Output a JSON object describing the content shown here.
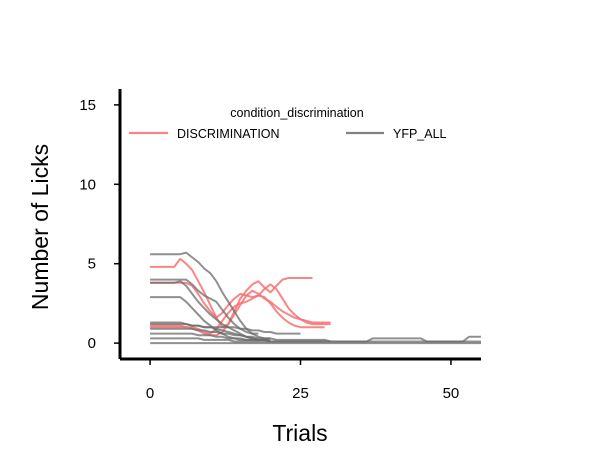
{
  "chart_data": {
    "type": "line",
    "xlabel": "Trials",
    "ylabel": "Number of Licks",
    "xlim": [
      -5,
      55
    ],
    "ylim": [
      -1,
      16
    ],
    "xticks": [
      0,
      25,
      50
    ],
    "yticks": [
      0,
      5,
      10,
      15
    ],
    "grid": false,
    "legend": {
      "title": "condition_discrimination",
      "placement": "top",
      "entries": [
        {
          "label": "DISCRIMINATION",
          "color": "#f87171"
        },
        {
          "label": "YFP_ALL",
          "color": "#6b6b6b"
        }
      ]
    },
    "series": [
      {
        "group": "DISCRIMINATION",
        "x": [
          0,
          1,
          2,
          3,
          4,
          5,
          6,
          7,
          8,
          9,
          10,
          11,
          12,
          13,
          14,
          15,
          16,
          17,
          18,
          19,
          20,
          21,
          22,
          23,
          24,
          25,
          26,
          27
        ],
        "y": [
          4.8,
          4.8,
          4.8,
          4.8,
          4.8,
          5.3,
          5.0,
          4.6,
          3.9,
          3.2,
          2.4,
          1.6,
          1.0,
          1.2,
          2.0,
          2.8,
          3.3,
          3.7,
          3.9,
          3.5,
          3.2,
          3.6,
          4.0,
          4.1,
          4.1,
          4.1,
          4.1,
          4.1
        ]
      },
      {
        "group": "DISCRIMINATION",
        "x": [
          0,
          1,
          2,
          3,
          4,
          5,
          6,
          7,
          8,
          9,
          10,
          11,
          12,
          13,
          14,
          15,
          16,
          17,
          18,
          19,
          20,
          21,
          22,
          23,
          24,
          25,
          26,
          27,
          28,
          29,
          30
        ],
        "y": [
          3.8,
          3.8,
          3.8,
          3.8,
          3.8,
          3.8,
          3.8,
          3.6,
          3.1,
          2.5,
          2.0,
          1.6,
          1.9,
          2.4,
          2.8,
          3.1,
          3.0,
          2.9,
          3.0,
          3.4,
          3.7,
          3.4,
          2.8,
          2.2,
          1.8,
          1.5,
          1.3,
          1.2,
          1.2,
          1.2,
          1.2
        ]
      },
      {
        "group": "DISCRIMINATION",
        "x": [
          0,
          1,
          2,
          3,
          4,
          5,
          6,
          7,
          8,
          9,
          10,
          11,
          12,
          13,
          14,
          15,
          16,
          17,
          18,
          19,
          20,
          21,
          22,
          23,
          24,
          25,
          26,
          27,
          28,
          29,
          30
        ],
        "y": [
          1.1,
          1.1,
          1.1,
          1.1,
          1.1,
          1.1,
          1.0,
          0.9,
          0.8,
          0.6,
          0.5,
          0.5,
          0.7,
          1.2,
          1.8,
          2.4,
          3.0,
          3.3,
          3.1,
          2.8,
          2.6,
          2.3,
          2.0,
          1.8,
          1.6,
          1.5,
          1.4,
          1.3,
          1.3,
          1.3,
          1.3
        ]
      },
      {
        "group": "DISCRIMINATION",
        "x": [
          0,
          1,
          2,
          3,
          4,
          5,
          6,
          7,
          8,
          9,
          10,
          11,
          12,
          13,
          14,
          15,
          16,
          17,
          18,
          19,
          20,
          21,
          22,
          23,
          24,
          25,
          26,
          27,
          28,
          29
        ],
        "y": [
          1.0,
          1.0,
          1.0,
          1.0,
          1.0,
          1.0,
          1.0,
          1.0,
          0.9,
          0.7,
          0.6,
          0.9,
          1.4,
          1.9,
          2.3,
          2.5,
          2.6,
          2.8,
          3.0,
          2.9,
          2.5,
          2.0,
          1.6,
          1.3,
          1.1,
          1.0,
          1.0,
          1.0,
          1.0,
          1.0
        ]
      },
      {
        "group": "YFP_ALL",
        "x": [
          0,
          1,
          2,
          3,
          4,
          5,
          6,
          7,
          8,
          9,
          10,
          11,
          12,
          13,
          14,
          15,
          16,
          17,
          18,
          19,
          20
        ],
        "y": [
          5.6,
          5.6,
          5.6,
          5.6,
          5.6,
          5.6,
          5.7,
          5.4,
          5.1,
          4.7,
          4.4,
          3.9,
          3.2,
          2.6,
          2.0,
          1.4,
          0.9,
          0.6,
          0.4,
          0.3,
          0.3
        ]
      },
      {
        "group": "YFP_ALL",
        "x": [
          0,
          1,
          2,
          3,
          4,
          5,
          6,
          7,
          8,
          9,
          10,
          11,
          12,
          13,
          14,
          15,
          16,
          17,
          18
        ],
        "y": [
          4.0,
          4.0,
          4.0,
          4.0,
          4.0,
          4.0,
          4.0,
          3.7,
          3.3,
          3.0,
          2.8,
          2.6,
          2.1,
          1.6,
          1.2,
          0.9,
          0.7,
          0.6,
          0.6
        ]
      },
      {
        "group": "YFP_ALL",
        "x": [
          0,
          1,
          2,
          3,
          4,
          5,
          6,
          7,
          8,
          9,
          10,
          11,
          12,
          13,
          14,
          15,
          16,
          17,
          18,
          19,
          20
        ],
        "y": [
          3.8,
          3.8,
          3.8,
          3.8,
          3.8,
          3.9,
          3.6,
          3.1,
          2.6,
          2.2,
          1.8,
          1.5,
          1.2,
          1.0,
          0.8,
          0.6,
          0.4,
          0.3,
          0.2,
          0.2,
          0.2
        ]
      },
      {
        "group": "YFP_ALL",
        "x": [
          0,
          1,
          2,
          3,
          4,
          5,
          6,
          7,
          8,
          9,
          10,
          11,
          12,
          13,
          14,
          15,
          16,
          17,
          18
        ],
        "y": [
          2.9,
          2.9,
          2.9,
          2.9,
          2.9,
          2.9,
          2.6,
          2.2,
          1.8,
          1.4,
          1.1,
          0.8,
          0.6,
          0.4,
          0.3,
          0.2,
          0.2,
          0.2,
          0.2
        ]
      },
      {
        "group": "YFP_ALL",
        "x": [
          0,
          1,
          2,
          3,
          4,
          5,
          6,
          7,
          8,
          9,
          10,
          11,
          12,
          13,
          14,
          15,
          16,
          17,
          18,
          19,
          20,
          21,
          22,
          23,
          24,
          25,
          26,
          27,
          28,
          29,
          30,
          31,
          32,
          33,
          34,
          35,
          36,
          37,
          38,
          39,
          40,
          41,
          42,
          43,
          44,
          45,
          46,
          47,
          48,
          49,
          50,
          51,
          52,
          53,
          54,
          55
        ],
        "y": [
          1.3,
          1.3,
          1.3,
          1.3,
          1.3,
          1.3,
          1.2,
          1.1,
          1.1,
          1.0,
          1.0,
          0.9,
          0.8,
          0.7,
          0.6,
          0.5,
          0.4,
          0.3,
          0.2,
          0.2,
          0.1,
          0.1,
          0.1,
          0.1,
          0.1,
          0.1,
          0.1,
          0.1,
          0.1,
          0.1,
          0.1,
          0.1,
          0.1,
          0.1,
          0.1,
          0.1,
          0.1,
          0.1,
          0.1,
          0.1,
          0.1,
          0.1,
          0.1,
          0.1,
          0.1,
          0.1,
          0.1,
          0.1,
          0.1,
          0.1,
          0.1,
          0.1,
          0.1,
          0.1,
          0.1,
          0.1
        ]
      },
      {
        "group": "YFP_ALL",
        "x": [
          0,
          1,
          2,
          3,
          4,
          5,
          6,
          7,
          8,
          9,
          10,
          11,
          12,
          13,
          14,
          15,
          16,
          17,
          18,
          19,
          20,
          21,
          22,
          23,
          24,
          25
        ],
        "y": [
          1.2,
          1.2,
          1.2,
          1.2,
          1.2,
          1.2,
          1.2,
          1.1,
          1.1,
          1.0,
          1.0,
          1.0,
          1.0,
          1.0,
          1.0,
          0.9,
          0.9,
          0.8,
          0.8,
          0.7,
          0.7,
          0.6,
          0.6,
          0.6,
          0.6,
          0.6
        ]
      },
      {
        "group": "YFP_ALL",
        "x": [
          0,
          1,
          2,
          3,
          4,
          5,
          6,
          7,
          8,
          9,
          10,
          11,
          12,
          13,
          14,
          15,
          16,
          17,
          18,
          19,
          20,
          21,
          22,
          23,
          24,
          25,
          26,
          27,
          28,
          29,
          30,
          31,
          32,
          33,
          34,
          35,
          36,
          37,
          38,
          39,
          40,
          41,
          42,
          43,
          44,
          45,
          46,
          47,
          48,
          49,
          50,
          51,
          52,
          53,
          54,
          55
        ],
        "y": [
          0.9,
          0.9,
          0.9,
          0.9,
          0.9,
          0.9,
          0.9,
          0.9,
          0.8,
          0.8,
          0.7,
          0.7,
          0.6,
          0.6,
          0.5,
          0.5,
          0.4,
          0.4,
          0.3,
          0.3,
          0.3,
          0.2,
          0.2,
          0.2,
          0.2,
          0.2,
          0.2,
          0.2,
          0.2,
          0.2,
          0.1,
          0.1,
          0.1,
          0.1,
          0.1,
          0.1,
          0.1,
          0.3,
          0.3,
          0.3,
          0.3,
          0.3,
          0.3,
          0.3,
          0.3,
          0.3,
          0.1,
          0.1,
          0.1,
          0.1,
          0.1,
          0.1,
          0.1,
          0.4,
          0.4,
          0.4
        ]
      },
      {
        "group": "YFP_ALL",
        "x": [
          0,
          1,
          2,
          3,
          4,
          5,
          6,
          7,
          8,
          9,
          10,
          11,
          12,
          13,
          14,
          15,
          16,
          17,
          18,
          19,
          20,
          21,
          22,
          23,
          24,
          25,
          26,
          27,
          28,
          29,
          30
        ],
        "y": [
          0.6,
          0.6,
          0.6,
          0.6,
          0.6,
          0.6,
          0.6,
          0.6,
          0.5,
          0.5,
          0.5,
          0.4,
          0.4,
          0.3,
          0.3,
          0.3,
          0.2,
          0.2,
          0.2,
          0.2,
          0.1,
          0.1,
          0.1,
          0.1,
          0.1,
          0.1,
          0.1,
          0.1,
          0.1,
          0.1,
          0.1
        ]
      },
      {
        "group": "YFP_ALL",
        "x": [
          0,
          1,
          2,
          3,
          4,
          5,
          6,
          7,
          8,
          9,
          10,
          11,
          12,
          13,
          14,
          15,
          16,
          17,
          18,
          19,
          20
        ],
        "y": [
          0.3,
          0.3,
          0.3,
          0.3,
          0.3,
          0.3,
          0.3,
          0.3,
          0.3,
          0.2,
          0.2,
          0.2,
          0.2,
          0.2,
          0.1,
          0.1,
          0.1,
          0.1,
          0.1,
          0.1,
          0.1
        ]
      },
      {
        "group": "YFP_ALL",
        "x": [
          0,
          1,
          2,
          3,
          4,
          5,
          6,
          7,
          8,
          9,
          10,
          11,
          12,
          13,
          14,
          15,
          16,
          17,
          18,
          19,
          20,
          21,
          22,
          23,
          24,
          25,
          26,
          27,
          28,
          29,
          30,
          31,
          32,
          33,
          34,
          35,
          36,
          37,
          38,
          39,
          40,
          41,
          42,
          43,
          44,
          45,
          46,
          47,
          48,
          49,
          50,
          51,
          52,
          53,
          54,
          55
        ],
        "y": [
          0,
          0,
          0,
          0,
          0,
          0,
          0,
          0,
          0,
          0,
          0,
          0,
          0,
          0,
          0,
          0,
          0,
          0,
          0,
          0,
          0,
          0,
          0,
          0,
          0,
          0,
          0,
          0,
          0,
          0,
          0,
          0,
          0,
          0,
          0,
          0,
          0,
          0,
          0,
          0,
          0,
          0,
          0,
          0,
          0,
          0,
          0,
          0,
          0,
          0,
          0,
          0,
          0,
          0,
          0,
          0
        ]
      }
    ]
  }
}
